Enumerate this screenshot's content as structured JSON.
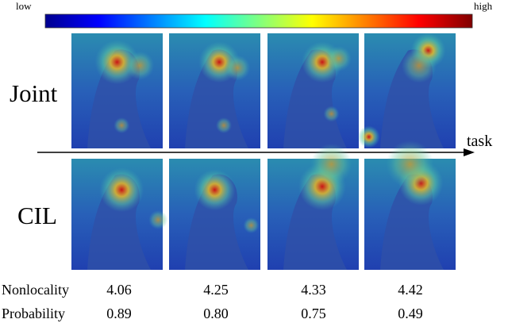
{
  "colorbar": {
    "low": "low",
    "high": "high"
  },
  "rows": [
    {
      "label": "Joint"
    },
    {
      "label": "CIL"
    }
  ],
  "axis_label": "task",
  "table": {
    "rows": [
      {
        "name": "Nonlocality",
        "values": [
          "4.06",
          "4.25",
          "4.33",
          "4.42"
        ]
      },
      {
        "name": "Probability",
        "values": [
          "0.89",
          "0.80",
          "0.75",
          "0.49"
        ]
      }
    ]
  }
}
